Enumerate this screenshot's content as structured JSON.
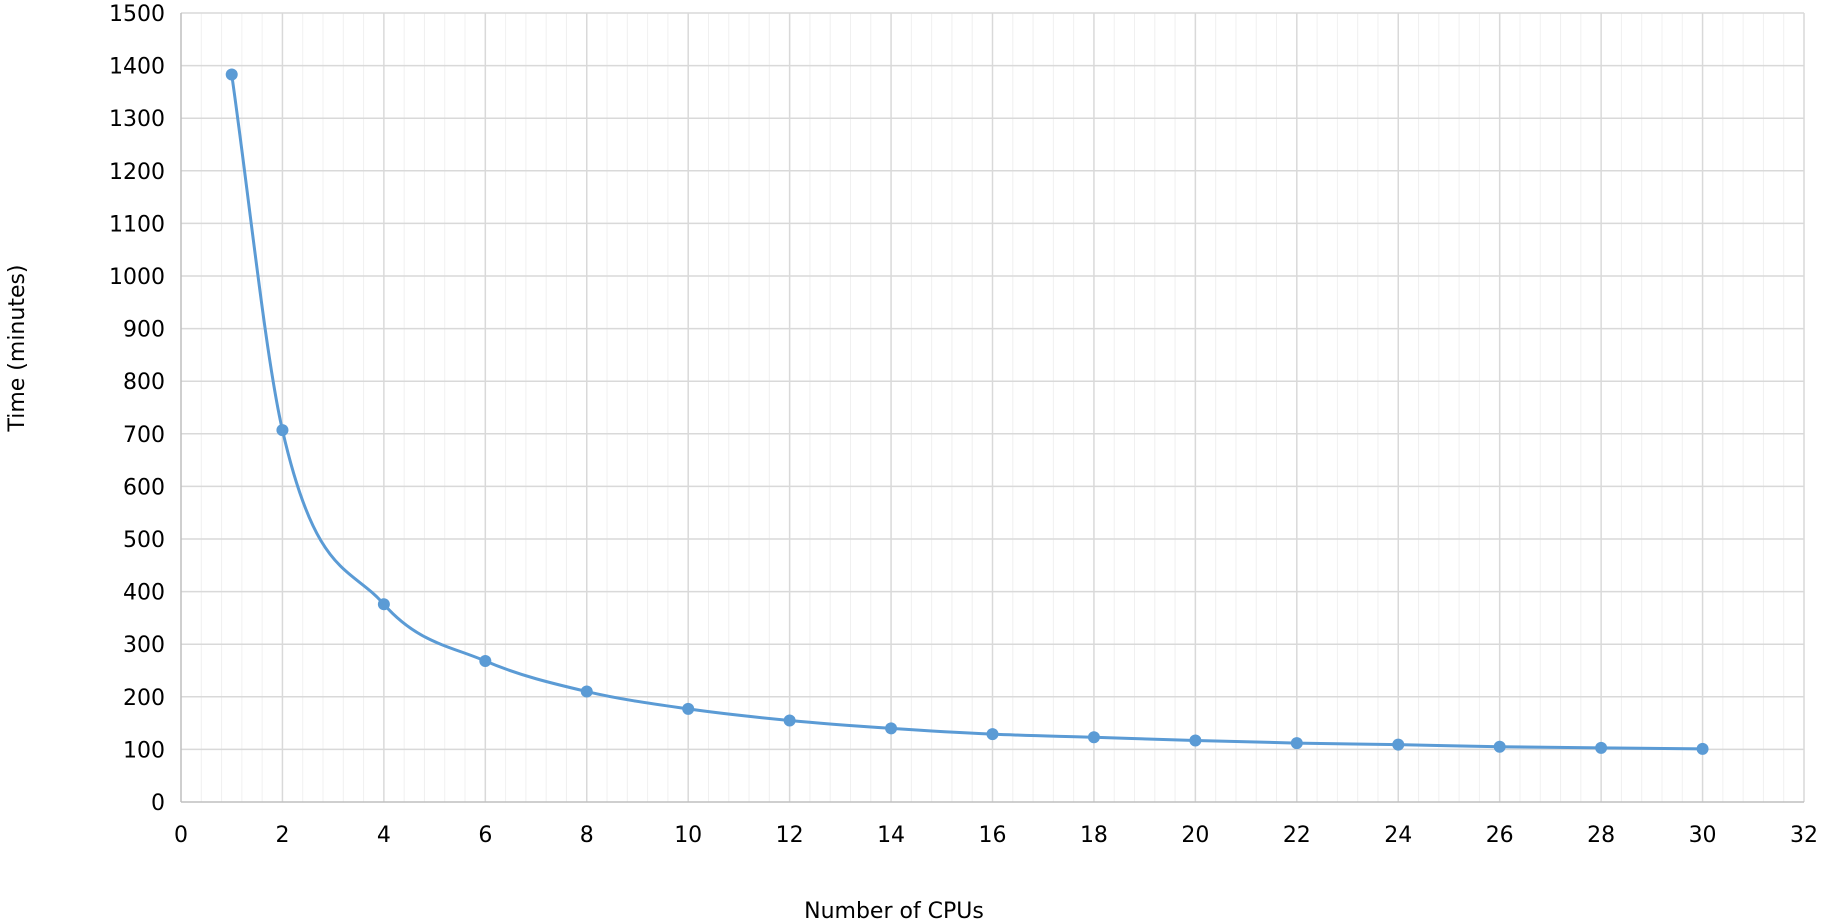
{
  "chart_data": {
    "type": "line",
    "smooth": true,
    "title": "",
    "xlabel": "Number of CPUs",
    "ylabel": "Time (minutes)",
    "xlim": [
      0,
      32
    ],
    "ylim": [
      0,
      1500
    ],
    "x_major_step": 2,
    "x_minor_step": 0.4,
    "y_major_step": 100,
    "grid": true,
    "legend": "none",
    "x_ticks": [
      "0",
      "2",
      "4",
      "6",
      "8",
      "10",
      "12",
      "14",
      "16",
      "18",
      "20",
      "22",
      "24",
      "26",
      "28",
      "30",
      "32"
    ],
    "y_ticks": [
      "0",
      "100",
      "200",
      "300",
      "400",
      "500",
      "600",
      "700",
      "800",
      "900",
      "1000",
      "1100",
      "1200",
      "1300",
      "1400",
      "1500"
    ],
    "series": [
      {
        "color": "#5b9bd5",
        "x": [
          1,
          2,
          4,
          6,
          8,
          10,
          12,
          14,
          16,
          18,
          20,
          22,
          24,
          26,
          28,
          30
        ],
        "y": [
          1383,
          707,
          376,
          268,
          210,
          177,
          155,
          140,
          129,
          123,
          117,
          112,
          109,
          105,
          103,
          101
        ]
      }
    ]
  },
  "colors": {
    "major_grid": "#d9d9d9",
    "minor_grid": "#f0f0f0",
    "axis": "#bfbfbf"
  }
}
